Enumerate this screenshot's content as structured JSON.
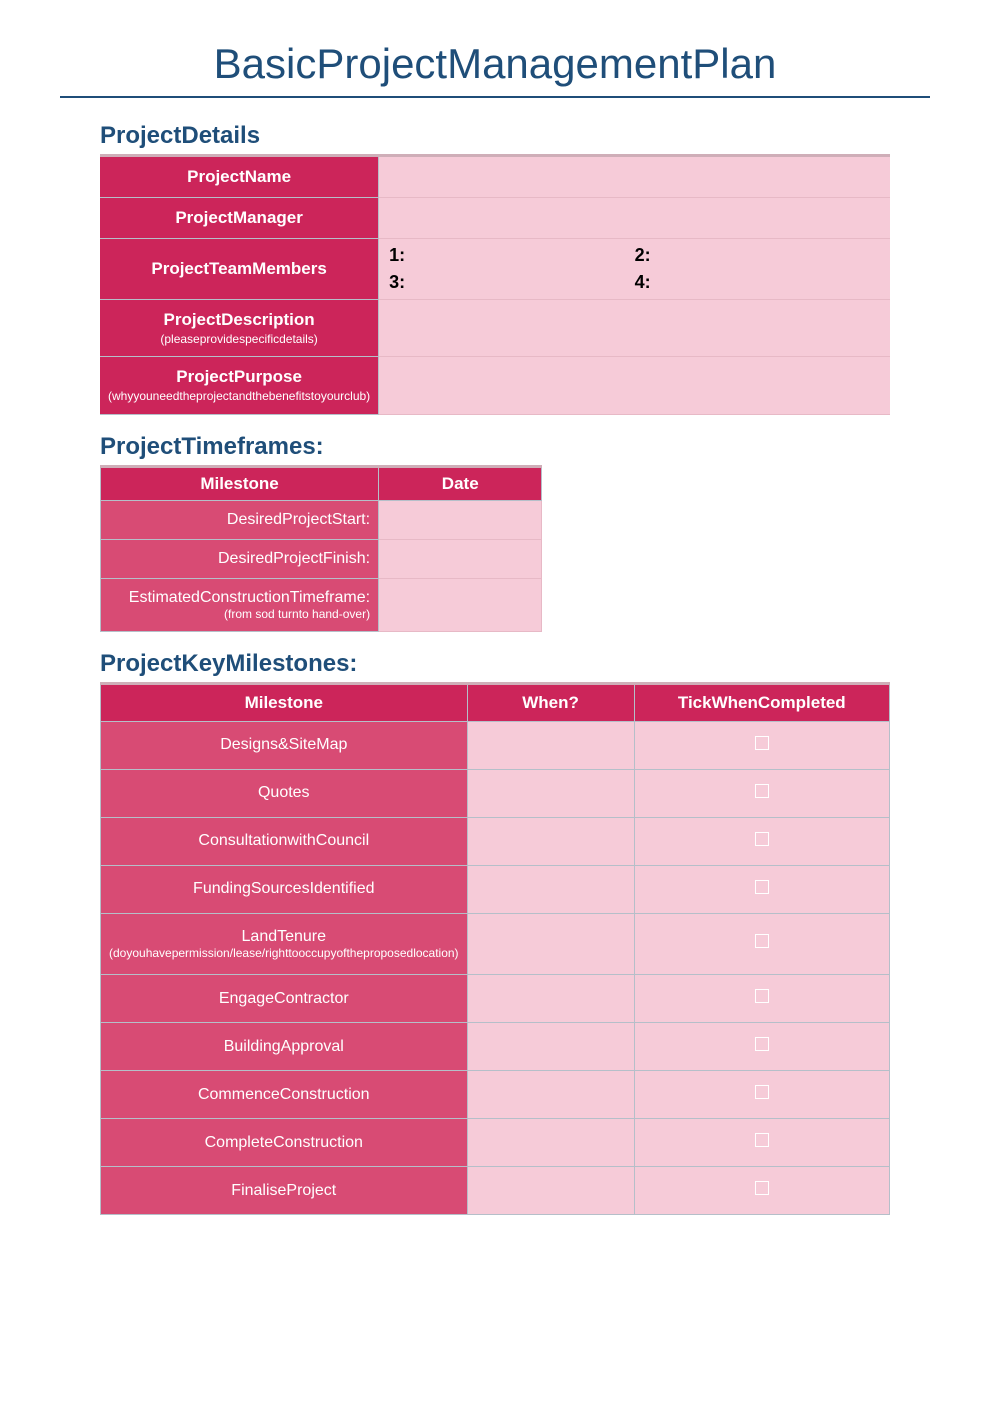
{
  "title": "BasicProjectManagementPlan",
  "sections": {
    "details": {
      "heading": "ProjectDetails",
      "rows": {
        "name": {
          "label": "ProjectName"
        },
        "manager": {
          "label": "ProjectManager"
        },
        "team": {
          "label": "ProjectTeamMembers",
          "members": {
            "m1": "1:",
            "m2": "2:",
            "m3": "3:",
            "m4": "4:"
          }
        },
        "description": {
          "label": "ProjectDescription",
          "sublabel": "(pleaseprovidespecificdetails)"
        },
        "purpose": {
          "label": "ProjectPurpose",
          "sublabel": "(whyyouneedtheprojectandthebenefitstoyourclub)"
        }
      }
    },
    "timeframes": {
      "heading": "ProjectTimeframes:",
      "cols": {
        "c1": "Milestone",
        "c2": "Date"
      },
      "rows": {
        "start": {
          "label": "DesiredProjectStart:"
        },
        "finish": {
          "label": "DesiredProjectFinish:"
        },
        "construction": {
          "label": "EstimatedConstructionTimeframe:",
          "sub": "(from sod turnto hand-over)"
        }
      }
    },
    "milestones": {
      "heading": "ProjectKeyMilestones:",
      "cols": {
        "c1": "Milestone",
        "c2": "When?",
        "c3": "TickWhenCompleted"
      },
      "rows": [
        {
          "label": "Designs&SiteMap"
        },
        {
          "label": "Quotes"
        },
        {
          "label": "ConsultationwithCouncil"
        },
        {
          "label": "FundingSourcesIdentified"
        },
        {
          "label": "LandTenure",
          "sub": "(doyouhavepermission/lease/righttooccupyoftheproposedlocation)"
        },
        {
          "label": "EngageContractor"
        },
        {
          "label": "BuildingApproval"
        },
        {
          "label": "CommenceConstruction"
        },
        {
          "label": "CompleteConstruction"
        },
        {
          "label": "FinaliseProject"
        }
      ]
    }
  },
  "colors": {
    "heading": "#1f4e79",
    "header_cell": "#cc255a",
    "body_label_cell": "#d84b74",
    "body_value_cell": "#f6cbd8",
    "border": "#b5bfc9"
  }
}
